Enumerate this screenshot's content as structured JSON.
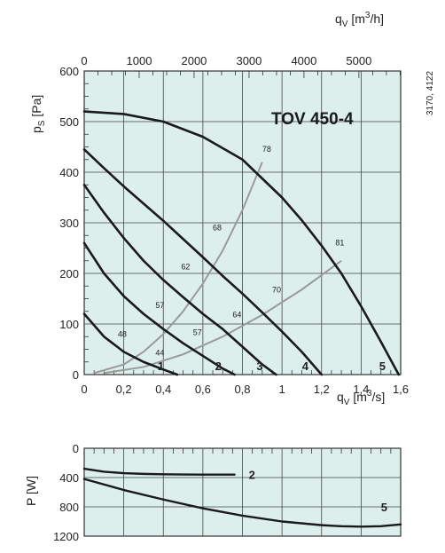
{
  "chart_data": [
    {
      "type": "line",
      "title": "TOV 450-4",
      "reference": "3170, 4122",
      "xlabel": "qV [m3/s]",
      "x_top_label": "qV [m3/h]",
      "ylabel": "pS [Pa]",
      "xlim": [
        0,
        1.6
      ],
      "ylim": [
        0,
        600
      ],
      "x_top_lim": [
        0,
        5760
      ],
      "x_ticks": [
        "0",
        "0,2",
        "0,4",
        "0,6",
        "0,8",
        "1",
        "1,2",
        "1,4",
        "1,6"
      ],
      "x_top_ticks": [
        "0",
        "1000",
        "2000",
        "3000",
        "4000",
        "5000"
      ],
      "y_ticks": [
        "0",
        "100",
        "200",
        "300",
        "400",
        "500",
        "600"
      ],
      "grid": true,
      "background": "#dcefec",
      "series": [
        {
          "name": "1",
          "x": [
            0,
            0.1,
            0.2,
            0.3,
            0.4,
            0.47
          ],
          "y": [
            120,
            75,
            45,
            25,
            10,
            0
          ]
        },
        {
          "name": "2",
          "x": [
            0,
            0.1,
            0.2,
            0.3,
            0.4,
            0.5,
            0.6,
            0.7,
            0.76
          ],
          "y": [
            260,
            200,
            155,
            120,
            90,
            62,
            37,
            12,
            0
          ]
        },
        {
          "name": "3",
          "x": [
            0,
            0.1,
            0.2,
            0.3,
            0.4,
            0.5,
            0.6,
            0.7,
            0.8,
            0.9,
            0.97
          ],
          "y": [
            375,
            320,
            270,
            225,
            187,
            153,
            120,
            90,
            55,
            20,
            0
          ]
        },
        {
          "name": "4",
          "x": [
            0,
            0.1,
            0.2,
            0.3,
            0.4,
            0.5,
            0.6,
            0.7,
            0.8,
            0.9,
            1.0,
            1.1,
            1.2
          ],
          "y": [
            445,
            408,
            372,
            338,
            304,
            268,
            232,
            195,
            160,
            123,
            85,
            45,
            0
          ]
        },
        {
          "name": "5",
          "x": [
            0,
            0.2,
            0.4,
            0.6,
            0.8,
            1.0,
            1.1,
            1.2,
            1.3,
            1.4,
            1.5,
            1.59
          ],
          "y": [
            520,
            515,
            500,
            470,
            425,
            350,
            305,
            255,
            200,
            135,
            65,
            0
          ]
        }
      ],
      "efficiency_lines": [
        {
          "x": [
            0.05,
            0.2,
            0.3,
            0.4,
            0.5,
            0.6,
            0.7,
            0.8,
            0.9
          ],
          "y": [
            3,
            20,
            45,
            80,
            125,
            180,
            245,
            325,
            420
          ]
        },
        {
          "x": [
            0.1,
            0.3,
            0.5,
            0.7,
            0.9,
            1.1,
            1.3
          ],
          "y": [
            3,
            15,
            40,
            75,
            118,
            168,
            225
          ]
        }
      ],
      "efficiency_labels": [
        {
          "text": "44",
          "x": 0.36,
          "y": 38
        },
        {
          "text": "48",
          "x": 0.17,
          "y": 75
        },
        {
          "text": "57",
          "x": 0.36,
          "y": 132
        },
        {
          "text": "57",
          "x": 0.55,
          "y": 78
        },
        {
          "text": "62",
          "x": 0.49,
          "y": 208
        },
        {
          "text": "64",
          "x": 0.75,
          "y": 113
        },
        {
          "text": "68",
          "x": 0.65,
          "y": 285
        },
        {
          "text": "70",
          "x": 0.95,
          "y": 162
        },
        {
          "text": "78",
          "x": 0.9,
          "y": 440
        },
        {
          "text": "81",
          "x": 1.27,
          "y": 255
        }
      ]
    },
    {
      "type": "line",
      "ylabel": "P [W]",
      "xlim": [
        0,
        1.6
      ],
      "ylim": [
        0,
        1200
      ],
      "y_inverted": true,
      "y_ticks": [
        "0",
        "400",
        "800",
        "1200"
      ],
      "grid": true,
      "series": [
        {
          "name": "2",
          "x": [
            0,
            0.1,
            0.2,
            0.3,
            0.4,
            0.5,
            0.6,
            0.7,
            0.76
          ],
          "y": [
            280,
            320,
            340,
            350,
            355,
            358,
            360,
            360,
            360
          ]
        },
        {
          "name": "5",
          "x": [
            0,
            0.2,
            0.4,
            0.6,
            0.8,
            1.0,
            1.2,
            1.3,
            1.4,
            1.5,
            1.6
          ],
          "y": [
            420,
            570,
            700,
            820,
            920,
            1000,
            1050,
            1065,
            1070,
            1065,
            1040
          ]
        }
      ]
    }
  ]
}
